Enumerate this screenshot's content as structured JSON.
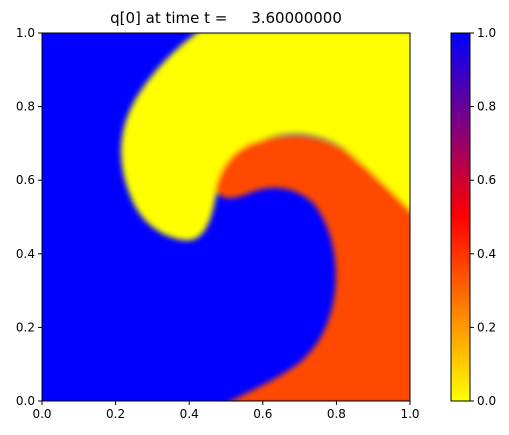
{
  "chart_data": {
    "type": "heatmap",
    "title": "q[0] at time t =     3.60000000",
    "xlabel": "",
    "ylabel": "",
    "xlim": [
      0.0,
      1.0
    ],
    "ylim": [
      0.0,
      1.0
    ],
    "x_ticks": [
      "0.0",
      "0.2",
      "0.4",
      "0.6",
      "0.8",
      "1.0"
    ],
    "y_ticks": [
      "0.0",
      "0.2",
      "0.4",
      "0.6",
      "0.8",
      "1.0"
    ],
    "grid": false,
    "colorbar": {
      "range": [
        0.0,
        1.0
      ],
      "ticks": [
        "0.0",
        "0.2",
        "0.4",
        "0.6",
        "0.8",
        "1.0"
      ],
      "colormap": [
        {
          "value": 0.0,
          "color": "#ffff00"
        },
        {
          "value": 0.5,
          "color": "#ff0000"
        },
        {
          "value": 1.0,
          "color": "#0000ff"
        }
      ]
    },
    "regions": [
      {
        "name": "background",
        "value": 1.0,
        "color": "#0000ff"
      },
      {
        "name": "outer-arm",
        "value": 0.0,
        "color": "#ffff00"
      },
      {
        "name": "inner-arm",
        "value": 0.33,
        "color": "#ff4a00"
      }
    ]
  }
}
